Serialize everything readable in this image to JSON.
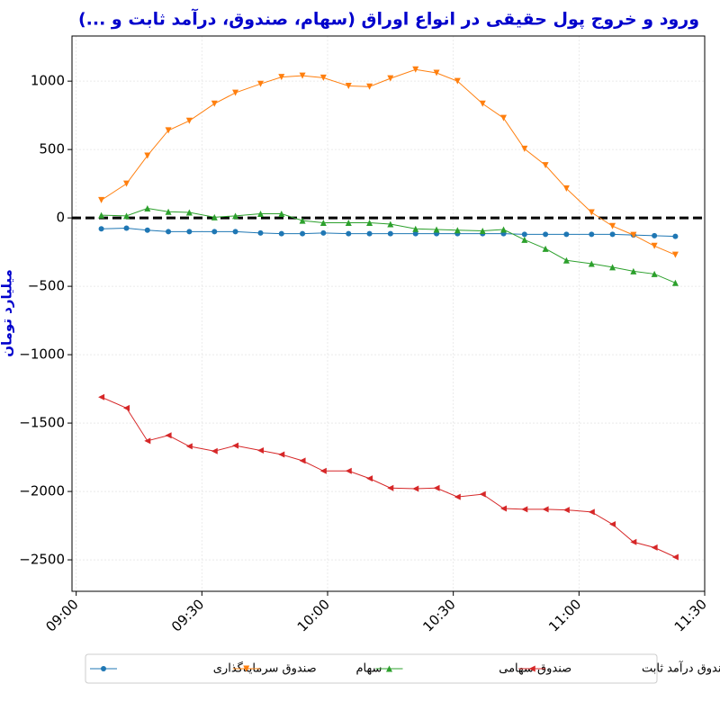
{
  "chart_data": {
    "type": "line",
    "title": "ورود و خروج پول حقیقی در انواع اوراق (سهام، صندوق، درآمد ثابت و ...)",
    "y_label": "میلیارد تومان",
    "x": [
      "09:06",
      "09:12",
      "09:17",
      "09:22",
      "09:27",
      "09:33",
      "09:38",
      "09:44",
      "09:49",
      "09:54",
      "09:59",
      "10:05",
      "10:10",
      "10:15",
      "10:21",
      "10:26",
      "10:31",
      "10:37",
      "10:42",
      "10:47",
      "10:52",
      "10:57",
      "11:03",
      "11:08",
      "11:13",
      "11:18",
      "11:23"
    ],
    "series": [
      {
        "name": "صندوق سرمایه‌گذاری",
        "color": "#1f77b4",
        "marker": "circle",
        "values": [
          -80,
          -75,
          -90,
          -100,
          -100,
          -100,
          -100,
          -110,
          -115,
          -115,
          -110,
          -115,
          -115,
          -115,
          -115,
          -115,
          -115,
          -115,
          -115,
          -120,
          -120,
          -120,
          -120,
          -120,
          -125,
          -130,
          -135
        ]
      },
      {
        "name": "سهام",
        "color": "#ff7f0e",
        "marker": "triangle-down",
        "values": [
          130,
          250,
          455,
          640,
          710,
          835,
          915,
          980,
          1030,
          1040,
          1025,
          965,
          960,
          1020,
          1085,
          1060,
          1000,
          835,
          730,
          505,
          385,
          215,
          40,
          -60,
          -125,
          -205,
          -270
        ]
      },
      {
        "name": "صندوق سهامی",
        "color": "#2ca02c",
        "marker": "triangle-up",
        "values": [
          20,
          15,
          70,
          45,
          40,
          5,
          15,
          30,
          30,
          -20,
          -35,
          -35,
          -35,
          -45,
          -80,
          -85,
          -90,
          -95,
          -85,
          -160,
          -225,
          -310,
          -335,
          -360,
          -390,
          -410,
          -475
        ]
      },
      {
        "name": "صندوق درآمد ثابت",
        "color": "#d62728",
        "marker": "triangle-left",
        "values": [
          -1310,
          -1390,
          -1630,
          -1590,
          -1670,
          -1705,
          -1665,
          -1700,
          -1730,
          -1775,
          -1850,
          -1850,
          -1905,
          -1975,
          -1980,
          -1975,
          -2040,
          -2020,
          -2125,
          -2130,
          -2130,
          -2135,
          -2150,
          -2240,
          -2370,
          -2410,
          -2480
        ]
      }
    ],
    "xlim": [
      "08:59",
      "11:30"
    ],
    "xticks": [
      "09:00",
      "09:30",
      "10:00",
      "10:30",
      "11:00",
      "11:30"
    ],
    "ylim": [
      -2730,
      1330
    ],
    "yticks": [
      {
        "value": -2500,
        "label": "−2500"
      },
      {
        "value": -2000,
        "label": "−2000"
      },
      {
        "value": -1500,
        "label": "−1500"
      },
      {
        "value": -1000,
        "label": "−1000"
      },
      {
        "value": -500,
        "label": "−500"
      },
      0,
      500,
      1000
    ],
    "hline": 0,
    "grid": true,
    "legend": "bottom"
  }
}
